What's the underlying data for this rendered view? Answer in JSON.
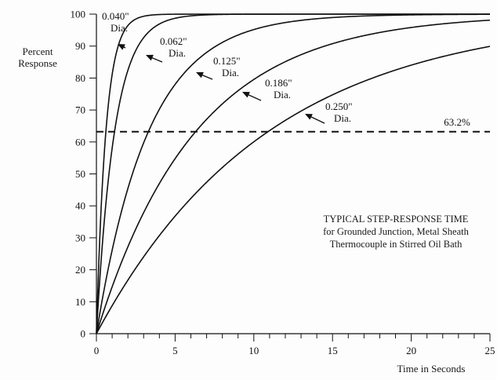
{
  "chart_data": {
    "type": "line",
    "title": "TYPICAL STEP-RESPONSE TIME",
    "subtitle_line1": "for Grounded Junction, Metal Sheath",
    "subtitle_line2": "Thermocouple in Stirred Oil Bath",
    "xlabel": "Time in Seconds",
    "ylabel_line1": "Percent",
    "ylabel_line2": "Response",
    "xlim": [
      0,
      25
    ],
    "ylim": [
      0,
      100
    ],
    "x_ticks": [
      0,
      5,
      10,
      15,
      20,
      25
    ],
    "y_ticks": [
      0,
      10,
      20,
      30,
      40,
      50,
      60,
      70,
      80,
      90,
      100
    ],
    "x_tick_labels": [
      "0",
      "5",
      "10",
      "15",
      "20",
      "25"
    ],
    "y_tick_labels": [
      "0",
      "10",
      "20",
      "30",
      "40",
      "50",
      "60",
      "70",
      "80",
      "90",
      "100"
    ],
    "grid": false,
    "reference_line": {
      "y": 63.2,
      "label": "63.2%",
      "style": "dashed"
    },
    "series": [
      {
        "name": "0.040\" Dia.",
        "time_constant_s": 0.6,
        "x": [
          0,
          0.3,
          0.6,
          1.0,
          1.5,
          2,
          3,
          4,
          25
        ],
        "y": [
          0,
          39.3,
          63.2,
          81.1,
          91.8,
          96.4,
          99.3,
          99.9,
          100
        ]
      },
      {
        "name": "0.062\" Dia.",
        "time_constant_s": 1.15,
        "x": [
          0,
          0.5,
          1.15,
          2,
          3,
          4,
          5,
          6,
          25
        ],
        "y": [
          0,
          35.3,
          63.2,
          82.4,
          92.6,
          96.9,
          98.7,
          99.5,
          100
        ]
      },
      {
        "name": "0.125\" Dia.",
        "time_constant_s": 3.3,
        "x": [
          0,
          1,
          2,
          3.3,
          5,
          7,
          10,
          15,
          20,
          25
        ],
        "y": [
          0,
          26.1,
          45.5,
          63.2,
          78.0,
          88.0,
          95.2,
          98.9,
          99.8,
          99.9
        ]
      },
      {
        "name": "0.186\" Dia.",
        "time_constant_s": 6.3,
        "x": [
          0,
          2,
          4,
          6.3,
          8,
          10,
          15,
          20,
          25
        ],
        "y": [
          0,
          27.2,
          47.0,
          63.2,
          71.9,
          79.6,
          90.8,
          95.8,
          98.1
        ]
      },
      {
        "name": "0.250\" Dia.",
        "time_constant_s": 10.9,
        "x": [
          0,
          3,
          6,
          10.9,
          15,
          20,
          25
        ],
        "y": [
          0,
          24.1,
          42.3,
          63.2,
          74.7,
          84.0,
          89.9
        ]
      }
    ],
    "annotations": [
      {
        "line1": "0.040\"",
        "line2": "Dia."
      },
      {
        "line1": "0.062\"",
        "line2": "Dia."
      },
      {
        "line1": "0.125\"",
        "line2": "Dia."
      },
      {
        "line1": "0.186\"",
        "line2": "Dia."
      },
      {
        "line1": "0.250\"",
        "line2": "Dia."
      }
    ],
    "colors": {
      "line": "#111111",
      "background": "#fdfdfd"
    }
  }
}
